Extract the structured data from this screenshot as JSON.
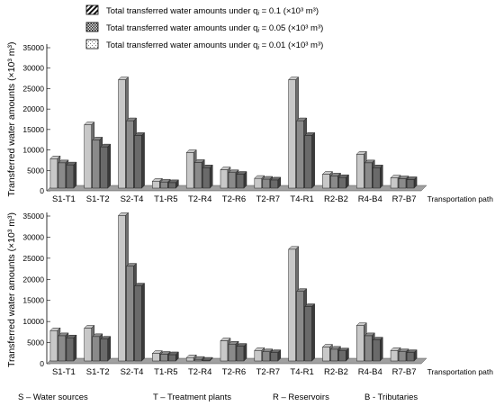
{
  "legend": [
    {
      "text": "Total transferred water amounts under q",
      "sub": "i",
      "tail": " = 0.1  (×10³ m³)",
      "pattern": "dark"
    },
    {
      "text": "Total transferred water amounts under q",
      "sub": "i",
      "tail": " = 0.05 (×10³ m³)",
      "pattern": "medium"
    },
    {
      "text": "Total transferred water amounts under q",
      "sub": "i",
      "tail": " = 0.01 (×10³ m³)",
      "pattern": "light"
    }
  ],
  "abbreviations": [
    "S – Water sources",
    "T – Treatment plants",
    "R – Reservoirs",
    "B - Tributaries"
  ],
  "colors": {
    "light": "#c8c8c8",
    "medium": "#8a8a8a",
    "dark": "#6a6a6a",
    "floor": "#a0a0a0"
  },
  "chart_data": [
    {
      "type": "bar",
      "ylabel": "Transferred water amounts (×10³ m³)",
      "xlabel": "Transportation path",
      "ylim": [
        0,
        35000
      ],
      "yticks": [
        0,
        5000,
        10000,
        15000,
        20000,
        25000,
        30000,
        35000
      ],
      "categories": [
        "S1-T1",
        "S1-T2",
        "S2-T4",
        "T1-R5",
        "T2-R4",
        "T2-R6",
        "T2-R7",
        "T4-R1",
        "R2-B2",
        "R4-B4",
        "R7-B7"
      ],
      "series": [
        {
          "name": "Total transferred water amounts under qi = 0.1  (×10³ m³)",
          "values": [
            7200,
            15500,
            26500,
            1700,
            8700,
            4500,
            2400,
            26500,
            3400,
            8300,
            2500
          ]
        },
        {
          "name": "Total transferred water amounts under qi = 0.05 (×10³ m³)",
          "values": [
            6200,
            11800,
            16500,
            1500,
            6300,
            3800,
            2200,
            16500,
            3000,
            6200,
            2300
          ]
        },
        {
          "name": "Total transferred water amounts under qi = 0.01 (×10³ m³)",
          "values": [
            5700,
            10100,
            12900,
            1350,
            5000,
            3400,
            2000,
            12900,
            2600,
            5000,
            2100
          ]
        }
      ]
    },
    {
      "type": "bar",
      "ylabel": "Transferred water amounts (×10³ m³)",
      "xlabel": "Transportation path",
      "ylim": [
        0,
        35000
      ],
      "yticks": [
        0,
        5000,
        10000,
        15000,
        20000,
        25000,
        30000,
        35000
      ],
      "categories": [
        "S1-T1",
        "S1-T2",
        "S2-T4",
        "T1-R5",
        "T2-R4",
        "T2-R6",
        "T2-R7",
        "T4-R1",
        "R2-B2",
        "R4-B4",
        "R7-B7"
      ],
      "series": [
        {
          "name": "Total transferred water amounts under qi = 0.1  (×10³ m³)",
          "values": [
            7200,
            7800,
            34500,
            1800,
            800,
            4800,
            2500,
            26500,
            3300,
            8400,
            2500
          ]
        },
        {
          "name": "Total transferred water amounts under qi = 0.05 (×10³ m³)",
          "values": [
            6000,
            5800,
            22500,
            1600,
            400,
            4000,
            2200,
            16500,
            2800,
            6000,
            2200
          ]
        },
        {
          "name": "Total transferred water amounts under qi = 0.01 (×10³ m³)",
          "values": [
            5500,
            5200,
            17800,
            1500,
            200,
            3500,
            2000,
            12900,
            2400,
            5000,
            2000
          ]
        }
      ]
    }
  ]
}
